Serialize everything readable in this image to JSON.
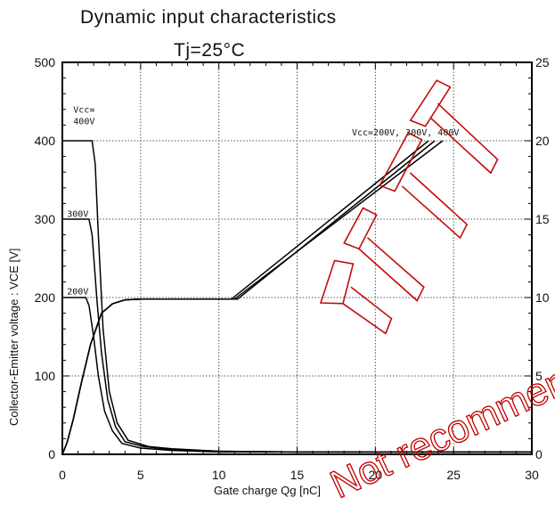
{
  "chart_data": {
    "type": "line",
    "title": "Dynamic  input  characteristics",
    "subtitle": "Tj=25°C",
    "xlabel": "Gate  charge   Qg  [nC]",
    "ylabel": "Collector-Emitter  voltage  :  VCE  [V]",
    "xlim": [
      0,
      30
    ],
    "ylim": [
      0,
      500
    ],
    "y2lim": [
      0,
      25
    ],
    "xticks": [
      "0",
      "5",
      "10",
      "15",
      "20",
      "25",
      "30"
    ],
    "yticks": [
      "0",
      "100",
      "200",
      "300",
      "400",
      "500"
    ],
    "y2ticks": [
      "0",
      "5",
      "10",
      "15",
      "20",
      "25"
    ],
    "grid": true,
    "annotations": [
      {
        "text": "Vcc=",
        "x": 0.7,
        "y": 436
      },
      {
        "text": "400V",
        "x": 0.7,
        "y": 421
      },
      {
        "text": "300V",
        "x": 0.3,
        "y": 303
      },
      {
        "text": "200V",
        "x": 0.3,
        "y": 204
      },
      {
        "text": "Vcc=200V, 300V, 400V",
        "x": 18.5,
        "y": 407
      }
    ],
    "series": [
      {
        "points": [
          [
            0,
            400
          ],
          [
            1.9,
            400
          ],
          [
            2.1,
            370
          ],
          [
            2.3,
            280
          ],
          [
            2.6,
            160
          ],
          [
            3.0,
            80
          ],
          [
            3.5,
            40
          ],
          [
            4.2,
            18
          ],
          [
            5.5,
            10
          ],
          [
            7,
            7
          ],
          [
            10,
            4
          ],
          [
            15,
            3
          ],
          [
            30,
            3
          ]
        ]
      },
      {
        "points": [
          [
            0,
            300
          ],
          [
            1.7,
            300
          ],
          [
            1.9,
            280
          ],
          [
            2.2,
            200
          ],
          [
            2.5,
            130
          ],
          [
            2.9,
            70
          ],
          [
            3.4,
            35
          ],
          [
            4.0,
            16
          ],
          [
            5.2,
            10
          ],
          [
            7,
            6
          ],
          [
            10,
            4
          ],
          [
            15,
            3
          ],
          [
            30,
            3
          ]
        ]
      },
      {
        "points": [
          [
            0,
            200
          ],
          [
            1.5,
            200
          ],
          [
            1.7,
            190
          ],
          [
            2.0,
            150
          ],
          [
            2.3,
            100
          ],
          [
            2.7,
            55
          ],
          [
            3.2,
            30
          ],
          [
            3.8,
            14
          ],
          [
            5,
            8
          ],
          [
            7,
            5
          ],
          [
            10,
            3
          ],
          [
            30,
            3
          ]
        ]
      },
      {
        "points": [
          [
            0,
            0
          ],
          [
            0.3,
            15
          ],
          [
            0.7,
            45
          ],
          [
            1.2,
            90
          ],
          [
            1.8,
            140
          ],
          [
            2.5,
            180
          ],
          [
            3.2,
            192
          ],
          [
            4,
            197
          ],
          [
            5,
            198
          ],
          [
            11,
            198
          ],
          [
            24.3,
            400
          ]
        ]
      },
      {
        "points": [
          [
            0,
            0
          ],
          [
            0.3,
            15
          ],
          [
            0.7,
            45
          ],
          [
            1.2,
            90
          ],
          [
            1.8,
            140
          ],
          [
            2.5,
            180
          ],
          [
            3.2,
            192
          ],
          [
            4,
            197
          ],
          [
            5,
            198
          ],
          [
            11.2,
            198
          ],
          [
            23.8,
            400
          ]
        ]
      },
      {
        "points": [
          [
            0,
            0
          ],
          [
            0.3,
            15
          ],
          [
            0.7,
            45
          ],
          [
            1.2,
            90
          ],
          [
            1.8,
            140
          ],
          [
            2.5,
            180
          ],
          [
            3.2,
            192
          ],
          [
            4,
            197
          ],
          [
            5,
            198
          ],
          [
            10.8,
            198
          ],
          [
            23.4,
            400
          ]
        ]
      }
    ]
  },
  "watermark": {
    "color": "#c00000",
    "text": "Not recommended"
  }
}
